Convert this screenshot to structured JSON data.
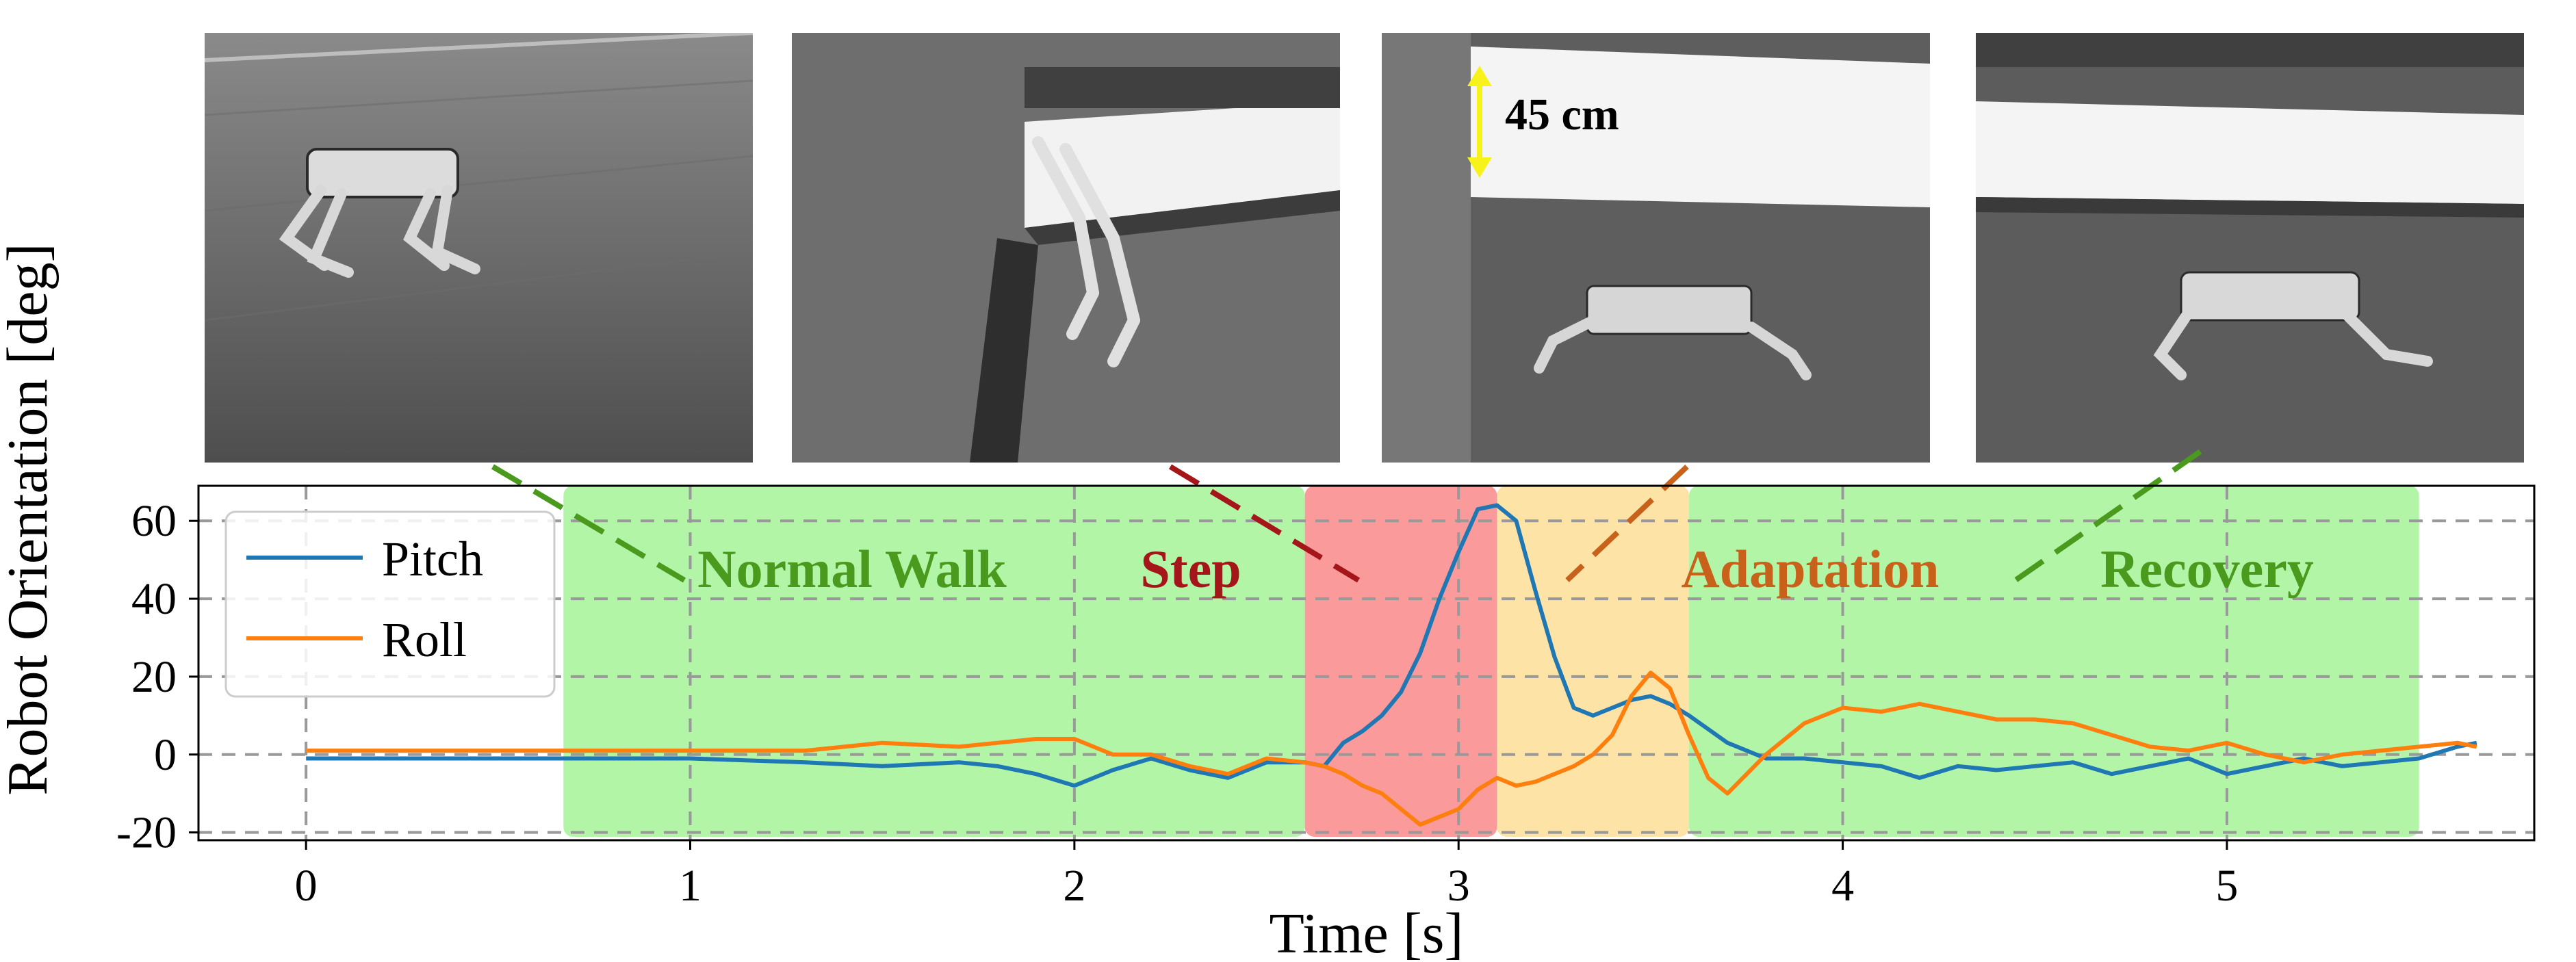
{
  "photos": [
    {
      "alt": "robot walking on floor"
    },
    {
      "alt": "robot stepping down from ledge"
    },
    {
      "alt": "robot landing below ledge",
      "height_label": "45 cm"
    },
    {
      "alt": "robot recovering walk"
    }
  ],
  "colors": {
    "pitch": "#1f77b4",
    "roll": "#ff7f0e",
    "phase_green": "#b3f5a6",
    "phase_red": "#fa9a9a",
    "phase_orange": "#fde3a6",
    "label_green": "#4a9a1e",
    "label_red": "#a4161a",
    "label_orange": "#c8621a",
    "height_arrow": "#f7f21a"
  },
  "phases": [
    {
      "label": "Normal Walk",
      "start": 0.67,
      "end": 2.6,
      "color": "green"
    },
    {
      "label": "Step",
      "start": 2.6,
      "end": 3.1,
      "color": "red"
    },
    {
      "label": "Adaptation",
      "start": 3.1,
      "end": 3.6,
      "color": "orange"
    },
    {
      "label": "Recovery",
      "start": 3.6,
      "end": 5.5,
      "color": "green"
    }
  ],
  "chart_data": {
    "type": "line",
    "xlabel": "Time [s]",
    "ylabel": "Robot Orientation [deg]",
    "xlim": [
      -0.28,
      5.8
    ],
    "ylim": [
      -22,
      69
    ],
    "xticks": [
      0,
      1,
      2,
      3,
      4,
      5
    ],
    "yticks": [
      -20,
      0,
      20,
      40,
      60
    ],
    "grid": true,
    "legend_position": "top-left",
    "series": [
      {
        "name": "Pitch",
        "color": "#1f77b4",
        "x": [
          0,
          0.67,
          1.0,
          1.3,
          1.5,
          1.7,
          1.8,
          1.9,
          2.0,
          2.1,
          2.2,
          2.3,
          2.4,
          2.5,
          2.6,
          2.65,
          2.7,
          2.75,
          2.8,
          2.85,
          2.9,
          2.95,
          3.0,
          3.05,
          3.1,
          3.15,
          3.2,
          3.25,
          3.3,
          3.35,
          3.4,
          3.45,
          3.5,
          3.55,
          3.6,
          3.7,
          3.8,
          3.9,
          4.0,
          4.1,
          4.2,
          4.3,
          4.4,
          4.5,
          4.6,
          4.7,
          4.8,
          4.9,
          5.0,
          5.1,
          5.2,
          5.3,
          5.4,
          5.5,
          5.6,
          5.65
        ],
        "y": [
          -1,
          -1,
          -1,
          -2,
          -3,
          -2,
          -3,
          -5,
          -8,
          -4,
          -1,
          -4,
          -6,
          -2,
          -2,
          -3,
          3,
          6,
          10,
          16,
          26,
          40,
          52,
          63,
          64,
          60,
          42,
          25,
          12,
          10,
          12,
          14,
          15,
          13,
          10,
          3,
          -1,
          -1,
          -2,
          -3,
          -6,
          -3,
          -4,
          -3,
          -2,
          -5,
          -3,
          -1,
          -5,
          -3,
          -1,
          -3,
          -2,
          -1,
          2,
          3
        ]
      },
      {
        "name": "Roll",
        "color": "#ff7f0e",
        "x": [
          0,
          0.67,
          1.0,
          1.3,
          1.5,
          1.7,
          1.8,
          1.9,
          2.0,
          2.1,
          2.2,
          2.3,
          2.4,
          2.5,
          2.6,
          2.65,
          2.7,
          2.75,
          2.8,
          2.85,
          2.9,
          2.95,
          3.0,
          3.05,
          3.1,
          3.15,
          3.2,
          3.25,
          3.3,
          3.35,
          3.4,
          3.45,
          3.5,
          3.55,
          3.6,
          3.65,
          3.7,
          3.8,
          3.9,
          4.0,
          4.1,
          4.2,
          4.3,
          4.4,
          4.5,
          4.6,
          4.7,
          4.8,
          4.9,
          5.0,
          5.1,
          5.2,
          5.3,
          5.4,
          5.5,
          5.6,
          5.65
        ],
        "y": [
          1,
          1,
          1,
          1,
          3,
          2,
          3,
          4,
          4,
          0,
          0,
          -3,
          -5,
          -1,
          -2,
          -3,
          -5,
          -8,
          -10,
          -14,
          -18,
          -16,
          -14,
          -9,
          -6,
          -8,
          -7,
          -5,
          -3,
          0,
          5,
          15,
          21,
          17,
          5,
          -6,
          -10,
          0,
          8,
          12,
          11,
          13,
          11,
          9,
          9,
          8,
          5,
          2,
          1,
          3,
          0,
          -2,
          0,
          1,
          2,
          3,
          2
        ]
      }
    ]
  }
}
